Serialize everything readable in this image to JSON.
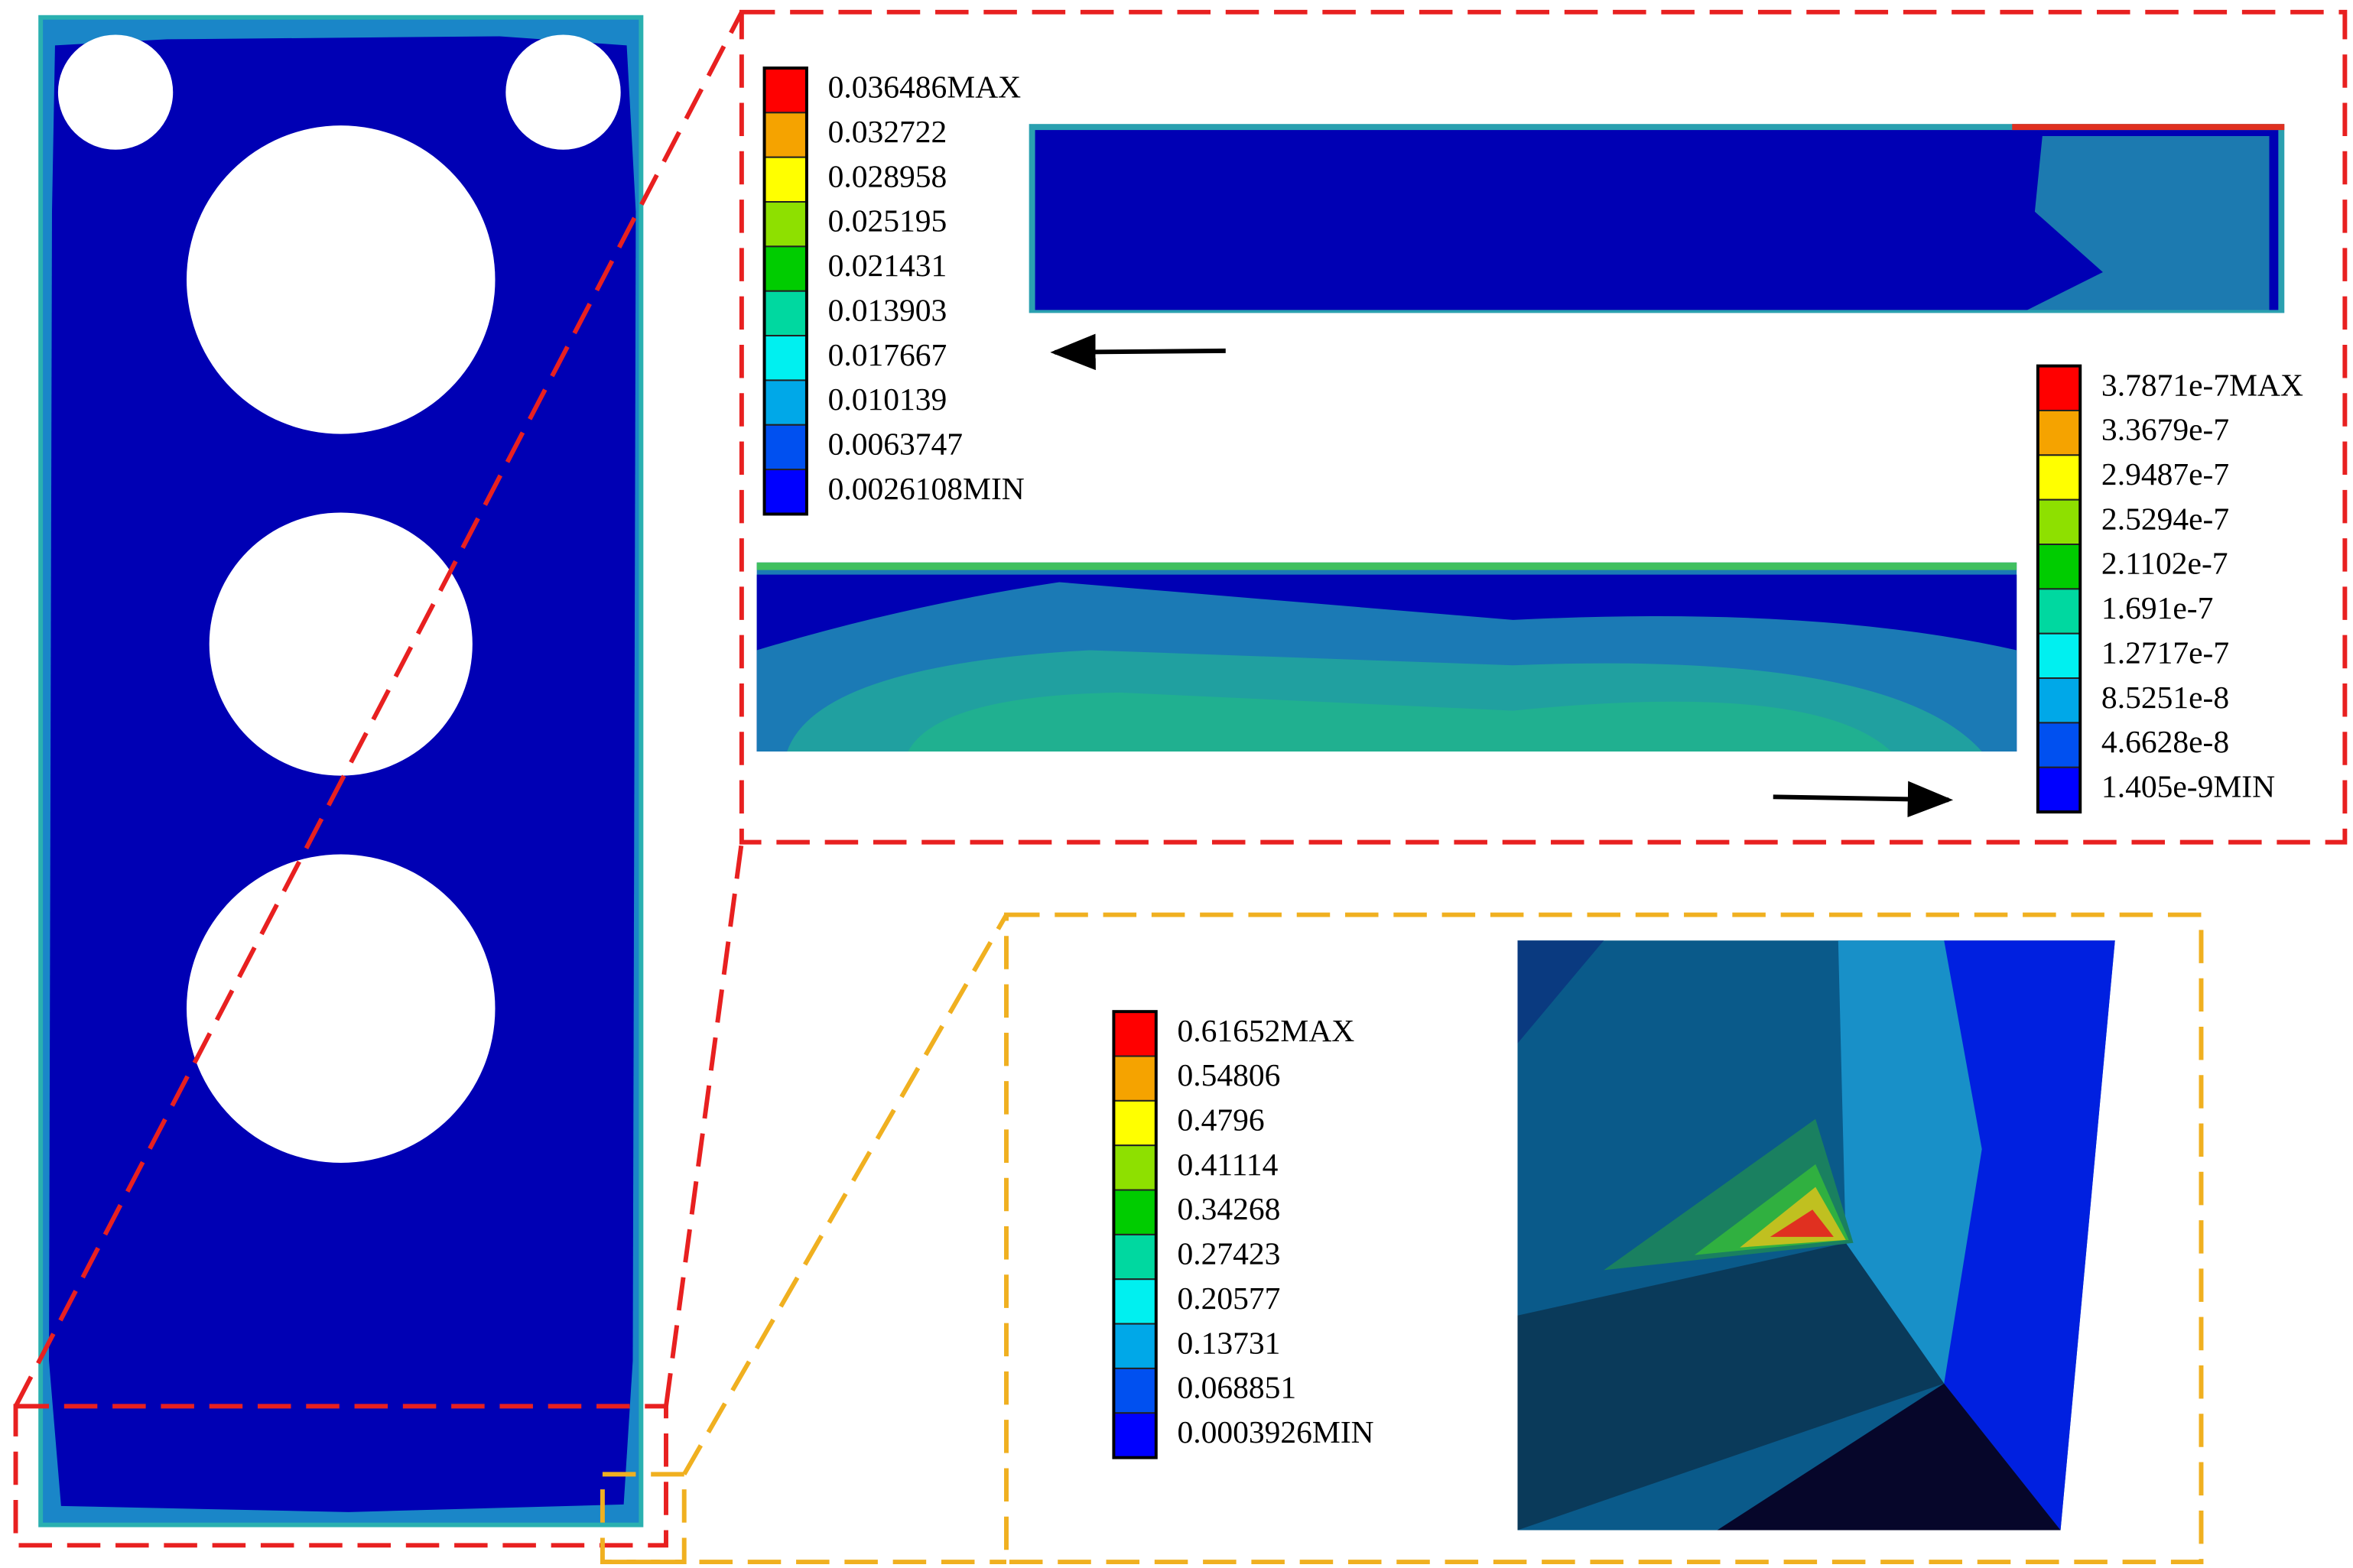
{
  "legends": [
    {
      "labels": [
        "0.036486MAX",
        "0.032722",
        "0.028958",
        "0.025195",
        "0.021431",
        "0.013903",
        "0.017667",
        "0.010139",
        "0.0063747",
        "0.0026108MIN"
      ]
    },
    {
      "labels": [
        "3.7871e-7MAX",
        "3.3679e-7",
        "2.9487e-7",
        "2.5294e-7",
        "2.1102e-7",
        "1.691e-7",
        "1.2717e-7",
        "8.5251e-8",
        "4.6628e-8",
        "1.405e-9MIN"
      ]
    },
    {
      "labels": [
        "0.61652MAX",
        "0.54806",
        "0.4796",
        "0.41114",
        "0.34268",
        "0.27423",
        "0.20577",
        "0.13731",
        "0.068851",
        "0.0003926MIN"
      ]
    }
  ]
}
